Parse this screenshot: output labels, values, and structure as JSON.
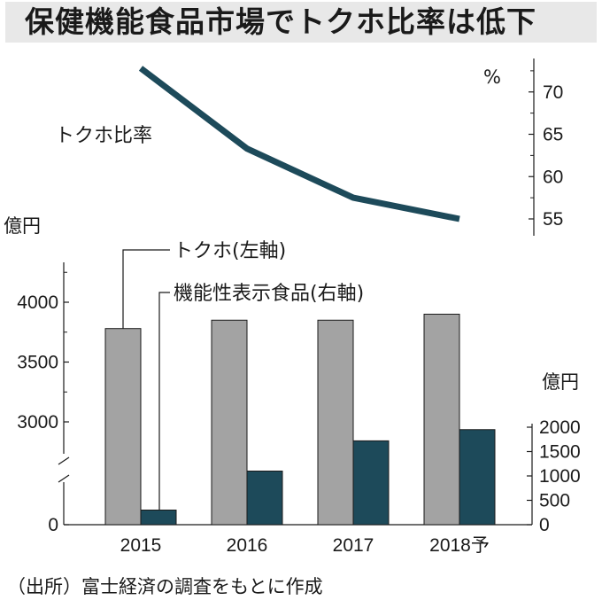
{
  "title": "保健機能食品市場でトクホ比率は低下",
  "source": "（出所）富士経済の調査をもとに作成",
  "colors": {
    "tokuho_bar": "#a3a3a3",
    "kinousei_bar": "#1d4a5a",
    "ratio_line": "#1d4a5a",
    "title_bg": "#e8e8e8"
  },
  "chart_data": {
    "type": "bar",
    "title": "保健機能食品市場でトクホ比率は低下",
    "categories": [
      "2015",
      "2016",
      "2017",
      "2018予"
    ],
    "left_axis": {
      "unit": "億円",
      "ticks": [
        "0",
        "3000",
        "3500",
        "4000"
      ],
      "range": [
        2550,
        4300
      ],
      "broken": true
    },
    "right_bar_axis": {
      "unit": "億円",
      "ticks": [
        "0",
        "500",
        "1000",
        "1500",
        "2000"
      ],
      "range": [
        0,
        2200
      ]
    },
    "right_line_axis": {
      "unit": "%",
      "ticks": [
        "55",
        "60",
        "65",
        "70"
      ],
      "range": [
        52.8,
        74.3
      ]
    },
    "series": [
      {
        "name": "トクホ(左軸)",
        "type": "bar",
        "axis": "left",
        "values": [
          3780,
          3850,
          3850,
          3900
        ]
      },
      {
        "name": "機能性表示食品(右軸)",
        "type": "bar",
        "axis": "right",
        "values": [
          300,
          1100,
          1720,
          1950
        ]
      },
      {
        "name": "トクホ比率",
        "type": "line",
        "axis": "right-upper",
        "values": [
          72.8,
          63.3,
          57.5,
          55.0
        ]
      }
    ]
  }
}
